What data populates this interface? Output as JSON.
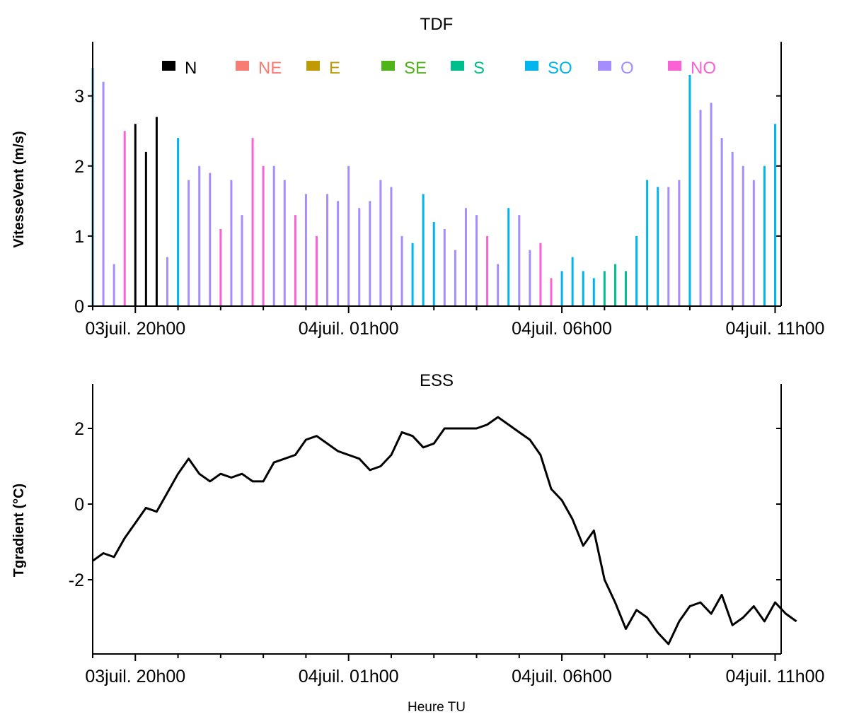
{
  "chart_data": [
    {
      "type": "bar",
      "title": "TDF",
      "xlabel": "",
      "ylabel": "VitesseVent (m/s)",
      "ylim": [
        0,
        3.4
      ],
      "yticks": [
        0,
        1,
        2,
        3
      ],
      "xticks": [
        "03juil. 20h00",
        "04juil. 01h00",
        "04juil. 06h00",
        "04juil. 11h00"
      ],
      "legend": {
        "placement": "top",
        "entries": [
          {
            "name": "N",
            "color": "#000000"
          },
          {
            "name": "NE",
            "color": "#f87c73"
          },
          {
            "name": "E",
            "color": "#c09a00"
          },
          {
            "name": "SE",
            "color": "#4eb418"
          },
          {
            "name": "S",
            "color": "#00bf8c"
          },
          {
            "name": "SO",
            "color": "#00b4ed"
          },
          {
            "name": "O",
            "color": "#a58dfe"
          },
          {
            "name": "NO",
            "color": "#fa61d5"
          }
        ]
      },
      "bars": [
        {
          "v": 3.4,
          "d": "SO"
        },
        {
          "v": 3.2,
          "d": "O"
        },
        {
          "v": 0.6,
          "d": "O"
        },
        {
          "v": 2.5,
          "d": "NO"
        },
        {
          "v": 2.6,
          "d": "N"
        },
        {
          "v": 2.2,
          "d": "N"
        },
        {
          "v": 2.7,
          "d": "N"
        },
        {
          "v": 0.7,
          "d": "O"
        },
        {
          "v": 2.4,
          "d": "SO"
        },
        {
          "v": 1.8,
          "d": "O"
        },
        {
          "v": 2.0,
          "d": "O"
        },
        {
          "v": 1.9,
          "d": "O"
        },
        {
          "v": 1.1,
          "d": "NO"
        },
        {
          "v": 1.8,
          "d": "O"
        },
        {
          "v": 1.3,
          "d": "O"
        },
        {
          "v": 2.4,
          "d": "NO"
        },
        {
          "v": 2.0,
          "d": "NO"
        },
        {
          "v": 2.0,
          "d": "O"
        },
        {
          "v": 1.8,
          "d": "O"
        },
        {
          "v": 1.3,
          "d": "NO"
        },
        {
          "v": 1.6,
          "d": "O"
        },
        {
          "v": 1.0,
          "d": "NO"
        },
        {
          "v": 1.6,
          "d": "O"
        },
        {
          "v": 1.5,
          "d": "O"
        },
        {
          "v": 2.0,
          "d": "O"
        },
        {
          "v": 1.4,
          "d": "O"
        },
        {
          "v": 1.5,
          "d": "O"
        },
        {
          "v": 1.8,
          "d": "O"
        },
        {
          "v": 1.7,
          "d": "O"
        },
        {
          "v": 1.0,
          "d": "O"
        },
        {
          "v": 0.9,
          "d": "SO"
        },
        {
          "v": 1.6,
          "d": "SO"
        },
        {
          "v": 1.2,
          "d": "SO"
        },
        {
          "v": 1.1,
          "d": "O"
        },
        {
          "v": 0.8,
          "d": "O"
        },
        {
          "v": 1.4,
          "d": "O"
        },
        {
          "v": 1.3,
          "d": "O"
        },
        {
          "v": 1.0,
          "d": "NO"
        },
        {
          "v": 0.6,
          "d": "O"
        },
        {
          "v": 1.4,
          "d": "SO"
        },
        {
          "v": 1.3,
          "d": "O"
        },
        {
          "v": 0.8,
          "d": "O"
        },
        {
          "v": 0.9,
          "d": "NO"
        },
        {
          "v": 0.4,
          "d": "NO"
        },
        {
          "v": 0.5,
          "d": "SO"
        },
        {
          "v": 0.7,
          "d": "SO"
        },
        {
          "v": 0.5,
          "d": "SO"
        },
        {
          "v": 0.4,
          "d": "SO"
        },
        {
          "v": 0.5,
          "d": "S"
        },
        {
          "v": 0.6,
          "d": "S"
        },
        {
          "v": 0.5,
          "d": "S"
        },
        {
          "v": 1.0,
          "d": "SO"
        },
        {
          "v": 1.8,
          "d": "SO"
        },
        {
          "v": 1.7,
          "d": "SO"
        },
        {
          "v": 1.7,
          "d": "O"
        },
        {
          "v": 1.8,
          "d": "O"
        },
        {
          "v": 3.3,
          "d": "SO"
        },
        {
          "v": 2.8,
          "d": "O"
        },
        {
          "v": 2.9,
          "d": "O"
        },
        {
          "v": 2.4,
          "d": "O"
        },
        {
          "v": 2.2,
          "d": "O"
        },
        {
          "v": 2.0,
          "d": "O"
        },
        {
          "v": 1.8,
          "d": "O"
        },
        {
          "v": 2.0,
          "d": "SO"
        },
        {
          "v": 2.6,
          "d": "SO"
        }
      ]
    },
    {
      "type": "line",
      "title": "ESS",
      "xlabel": "Heure TU",
      "ylabel": "Tgradient (°C)",
      "ylim": [
        -3.9,
        2.6
      ],
      "yticks": [
        -2,
        0,
        2
      ],
      "xticks": [
        "03juil. 20h00",
        "04juil. 01h00",
        "04juil. 06h00",
        "04juil. 11h00"
      ],
      "series": [
        {
          "color": "#000000",
          "values": [
            -1.5,
            -1.3,
            -1.4,
            -0.9,
            -0.5,
            -0.1,
            -0.2,
            0.3,
            0.8,
            1.2,
            0.8,
            0.6,
            0.8,
            0.7,
            0.8,
            0.6,
            0.6,
            1.1,
            1.2,
            1.3,
            1.7,
            1.8,
            1.6,
            1.4,
            1.3,
            1.2,
            0.9,
            1.0,
            1.3,
            1.9,
            1.8,
            1.5,
            1.6,
            2.0,
            2.0,
            2.0,
            2.0,
            2.1,
            2.3,
            2.1,
            1.9,
            1.7,
            1.3,
            0.4,
            0.1,
            -0.4,
            -1.1,
            -0.7,
            -2.0,
            -2.6,
            -3.3,
            -2.8,
            -3.0,
            -3.4,
            -3.7,
            -3.1,
            -2.7,
            -2.6,
            -2.9,
            -2.4,
            -3.2,
            -3.0,
            -2.7,
            -3.1,
            -2.6,
            -2.9,
            -3.1
          ]
        }
      ]
    }
  ]
}
